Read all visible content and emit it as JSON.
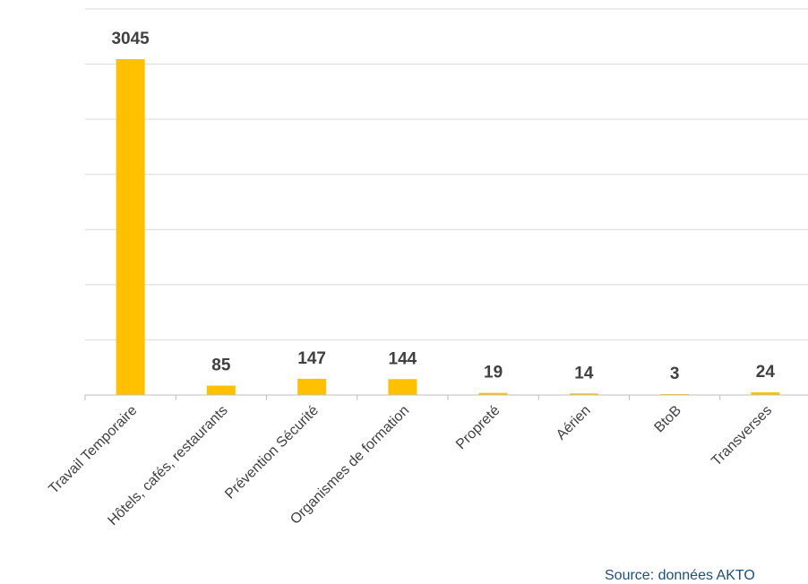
{
  "chart_data": {
    "type": "bar",
    "categories": [
      "Travail Temporaire",
      "Hôtels, cafés, restaurants",
      "Prévention Sécurité",
      "Organismes de formation",
      "Propreté",
      "Aérien",
      "BtoB",
      "Transverses"
    ],
    "values": [
      3045,
      85,
      147,
      144,
      19,
      14,
      3,
      24
    ],
    "data_labels": [
      "3045",
      "85",
      "147",
      "144",
      "19",
      "14",
      "3",
      "24"
    ],
    "title": "",
    "xlabel": "",
    "ylabel": "",
    "ylim": [
      0,
      3500
    ],
    "gridlines": true,
    "legend": "none",
    "bar_color": "#ffc000"
  },
  "source": "Source: données AKTO"
}
